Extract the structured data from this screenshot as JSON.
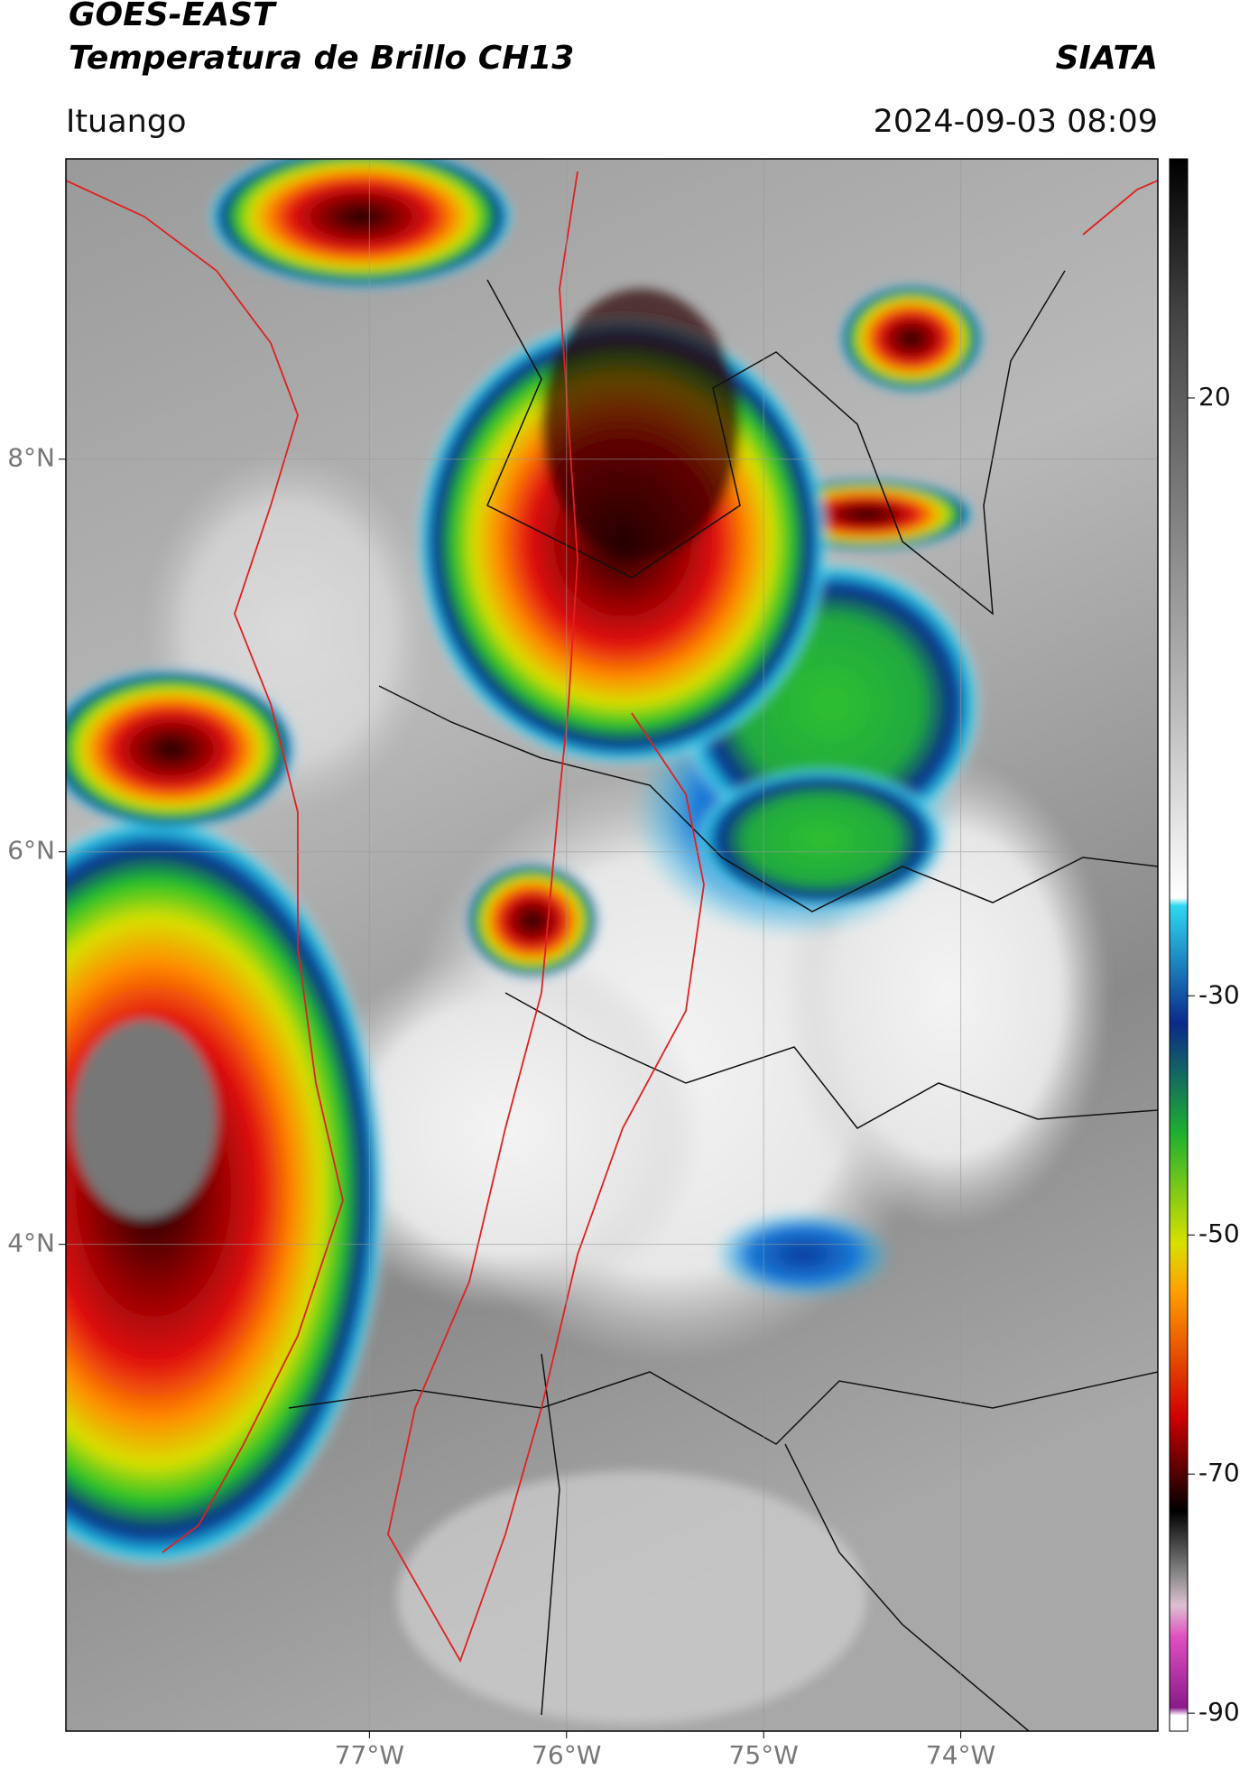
{
  "header": {
    "title": "GOES-EAST",
    "subtitle": "Temperatura de Brillo CH13",
    "brand": "SIATA",
    "location": "Ituango",
    "datetime": "2024-09-03 08:09"
  },
  "map": {
    "xlim": [
      -78.54,
      -73.0
    ],
    "ylim": [
      1.52,
      9.53
    ],
    "xticks": [
      {
        "value": -77,
        "label": "77°W"
      },
      {
        "value": -76,
        "label": "76°W"
      },
      {
        "value": -75,
        "label": "75°W"
      },
      {
        "value": -74,
        "label": "74°W"
      }
    ],
    "yticks": [
      {
        "value": 8,
        "label": "8°N"
      },
      {
        "value": 6,
        "label": "6°N"
      },
      {
        "value": 4,
        "label": "4°N"
      }
    ]
  },
  "colorbar": {
    "lim": [
      -91.5,
      40
    ],
    "ticks": [
      20,
      -30,
      -50,
      -70,
      -90
    ]
  }
}
